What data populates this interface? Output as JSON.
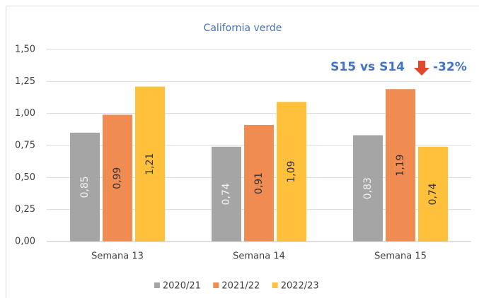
{
  "chart_data": {
    "type": "bar",
    "title": "California verde",
    "categories": [
      "Semana 13",
      "Semana 14",
      "Semana 15"
    ],
    "series": [
      {
        "name": "2020/21",
        "color": "#a5a5a5",
        "values": [
          0.85,
          0.74,
          0.83
        ],
        "value_labels": [
          "0,85",
          "0,74",
          "0,83"
        ]
      },
      {
        "name": "2021/22",
        "color": "#f08c52",
        "values": [
          0.99,
          0.91,
          1.19
        ],
        "value_labels": [
          "0,99",
          "0,91",
          "1,19"
        ]
      },
      {
        "name": "2022/23",
        "color": "#ffc13b",
        "values": [
          1.21,
          1.09,
          0.74
        ],
        "value_labels": [
          "1,21",
          "1,09",
          "0,74"
        ]
      }
    ],
    "ylim": [
      0,
      1.5
    ],
    "yticks": [
      {
        "value": 0,
        "label": "0,00"
      },
      {
        "value": 0.25,
        "label": "0,25"
      },
      {
        "value": 0.5,
        "label": "0,50"
      },
      {
        "value": 0.75,
        "label": "0,75"
      },
      {
        "value": 1,
        "label": "1,00"
      },
      {
        "value": 1.25,
        "label": "1,25"
      },
      {
        "value": 1.5,
        "label": "1,50"
      }
    ],
    "grid": true,
    "legend": "bottom",
    "annotation": {
      "text": "S15 vs S14",
      "change": "-32%"
    }
  }
}
